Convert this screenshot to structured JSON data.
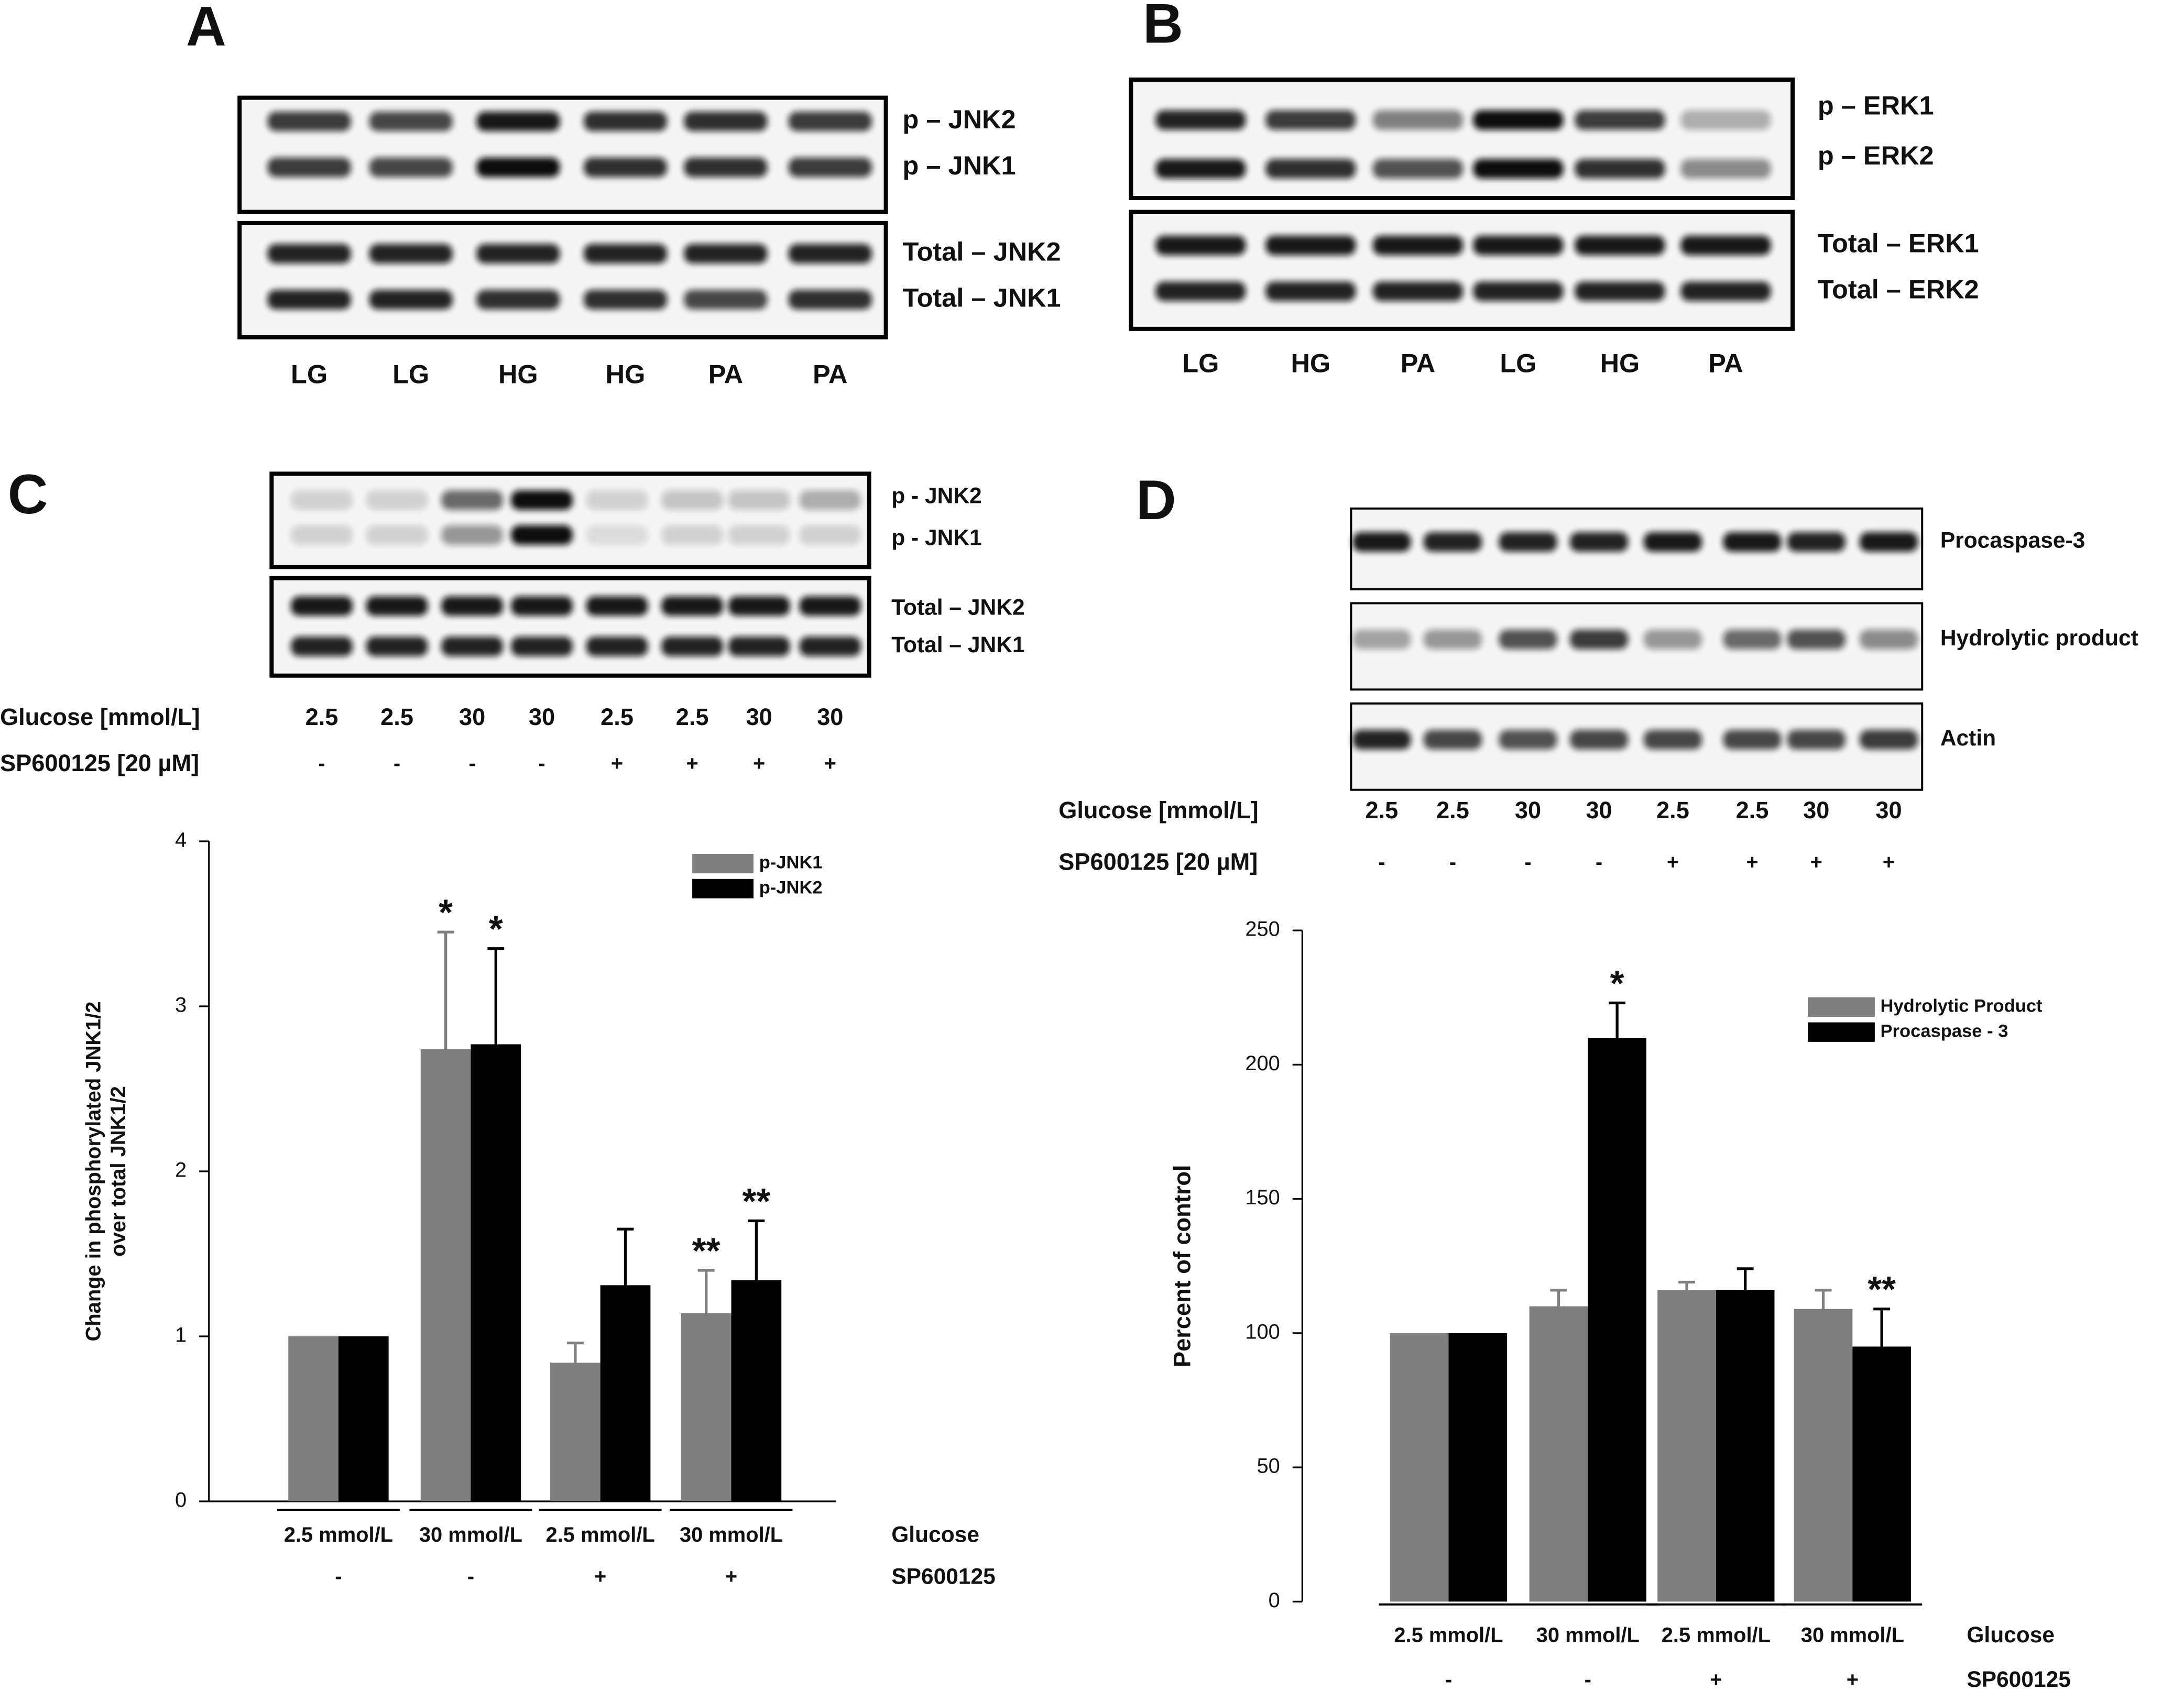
{
  "panels": {
    "A": {
      "letter": "A",
      "bands": [
        "p – JNK2",
        "p – JNK1",
        "Total – JNK2",
        "Total – JNK1"
      ],
      "lanes": [
        "LG",
        "LG",
        "HG",
        "HG",
        "PA",
        "PA"
      ]
    },
    "B": {
      "letter": "B",
      "bands": [
        "p – ERK1",
        "p – ERK2",
        "Total – ERK1",
        "Total – ERK2"
      ],
      "lanes": [
        "LG",
        "HG",
        "PA",
        "LG",
        "HG",
        "PA"
      ]
    },
    "C": {
      "letter": "C",
      "bands": [
        "p - JNK2",
        "p - JNK1",
        "Total – JNK2",
        "Total – JNK1"
      ],
      "rows": [
        {
          "label": "Glucose [mmol/L]",
          "values": [
            2.5,
            2.5,
            30,
            30,
            2.5,
            2.5,
            30,
            30
          ]
        },
        {
          "label": "SP600125 [20 µM]",
          "values": [
            "-",
            "-",
            "-",
            "-",
            "+",
            "+",
            "+",
            "+"
          ]
        }
      ]
    },
    "D": {
      "letter": "D",
      "bands": [
        "Procaspase-3",
        "Hydrolytic product",
        "Actin"
      ],
      "rows": [
        {
          "label": "Glucose [mmol/L]",
          "values": [
            2.5,
            2.5,
            30,
            30,
            2.5,
            2.5,
            30,
            30
          ]
        },
        {
          "label": "SP600125 [20 µM]",
          "values": [
            "-",
            "-",
            "-",
            "-",
            "+",
            "+",
            "+",
            "+"
          ]
        }
      ]
    }
  },
  "chart_data": [
    {
      "type": "bar",
      "y_label": [
        "Change in phosphorylated JNK1/2",
        "over total JNK1/2"
      ],
      "categories": [
        "2.5 mmol/L",
        "30 mmol/L",
        "2.5 mmol/L",
        "30 mmol/L"
      ],
      "sub_categories": [
        "-",
        "-",
        "+",
        "+"
      ],
      "category_titles": [
        "Glucose",
        "SP600125"
      ],
      "ylim": [
        0,
        4
      ],
      "yticks": [
        0,
        1,
        2,
        3,
        4
      ],
      "legend": "upper right",
      "series": [
        {
          "name": "p-JNK1",
          "color": "#7f7f7f",
          "values": [
            1,
            2.74,
            0.84,
            1.14
          ],
          "errors": [
            0,
            0.71,
            0.12,
            0.26
          ],
          "significance": [
            null,
            "*",
            null,
            "**"
          ]
        },
        {
          "name": "p-JNK2",
          "color": "#000000",
          "values": [
            1,
            2.77,
            1.31,
            1.34
          ],
          "errors": [
            0,
            0.58,
            0.34,
            0.36
          ],
          "significance": [
            null,
            "*",
            null,
            "**"
          ]
        }
      ]
    },
    {
      "type": "bar",
      "y_label": [
        "Percent of control"
      ],
      "categories": [
        "2.5 mmol/L",
        "30 mmol/L",
        "2.5 mmol/L",
        "30 mmol/L"
      ],
      "sub_categories": [
        "-",
        "-",
        "+",
        "+"
      ],
      "category_titles": [
        "Glucose",
        "SP600125"
      ],
      "ylim": [
        0,
        250
      ],
      "yticks": [
        0,
        50,
        100,
        150,
        200,
        250
      ],
      "legend": "upper right",
      "series": [
        {
          "name": "Hydrolytic Product",
          "color": "#7f7f7f",
          "values": [
            100,
            110,
            116,
            109
          ],
          "errors": [
            0,
            6,
            3,
            7
          ],
          "significance": [
            null,
            null,
            null,
            null
          ]
        },
        {
          "name": "Procaspase - 3",
          "color": "#000000",
          "values": [
            100,
            210,
            116,
            95
          ],
          "errors": [
            0,
            13,
            8,
            14
          ],
          "significance": [
            null,
            "*",
            null,
            "**"
          ]
        }
      ]
    }
  ]
}
